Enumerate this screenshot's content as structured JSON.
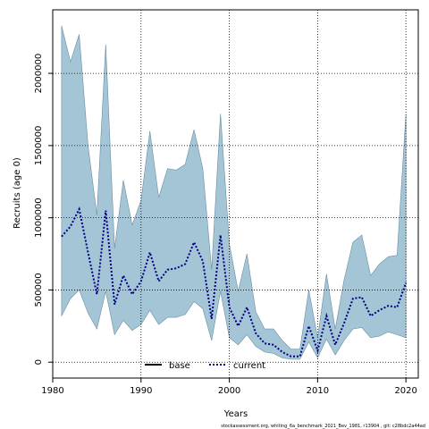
{
  "chart_data": {
    "type": "line",
    "xlabel": "Years",
    "ylabel": "Recruits (age 0)",
    "xlim": [
      1980,
      2021.4
    ],
    "ylim": [
      -110000,
      2440000
    ],
    "x_ticks": [
      1980,
      1990,
      2000,
      2010,
      2020
    ],
    "y_ticks": [
      0,
      500000,
      1000000,
      1500000,
      2000000
    ],
    "grid": true,
    "legend_placement": "bottom-center",
    "x": [
      1981,
      1982,
      1983,
      1984,
      1985,
      1986,
      1987,
      1988,
      1989,
      1990,
      1991,
      1992,
      1993,
      1994,
      1995,
      1996,
      1997,
      1998,
      1999,
      2000,
      2001,
      2002,
      2003,
      2004,
      2005,
      2006,
      2007,
      2008,
      2009,
      2010,
      2011,
      2012,
      2013,
      2014,
      2015,
      2016,
      2017,
      2018,
      2019,
      2020
    ],
    "series": [
      {
        "name": "current",
        "color": "#000080",
        "values": [
          870000,
          940000,
          1060000,
          760000,
          470000,
          1050000,
          400000,
          600000,
          470000,
          560000,
          760000,
          560000,
          640000,
          650000,
          680000,
          830000,
          700000,
          300000,
          880000,
          380000,
          250000,
          380000,
          200000,
          130000,
          120000,
          70000,
          40000,
          40000,
          250000,
          80000,
          320000,
          120000,
          270000,
          440000,
          450000,
          320000,
          360000,
          390000,
          380000,
          550000
        ],
        "lower": [
          320000,
          440000,
          500000,
          340000,
          230000,
          490000,
          190000,
          290000,
          220000,
          260000,
          360000,
          260000,
          310000,
          310000,
          330000,
          420000,
          370000,
          150000,
          490000,
          170000,
          120000,
          190000,
          110000,
          70000,
          60000,
          30000,
          20000,
          20000,
          140000,
          30000,
          160000,
          50000,
          150000,
          230000,
          240000,
          170000,
          180000,
          210000,
          190000,
          170000
        ],
        "upper": [
          2330000,
          2080000,
          2270000,
          1500000,
          1020000,
          2200000,
          790000,
          1260000,
          950000,
          1120000,
          1600000,
          1140000,
          1340000,
          1330000,
          1370000,
          1610000,
          1340000,
          640000,
          1720000,
          820000,
          490000,
          750000,
          350000,
          230000,
          230000,
          150000,
          90000,
          90000,
          500000,
          170000,
          610000,
          230000,
          570000,
          830000,
          880000,
          600000,
          680000,
          730000,
          740000,
          1720000
        ]
      }
    ],
    "ci_fill_color": "#a4c5d6",
    "ci_stroke_color": "#6a8ea3"
  },
  "legend": {
    "base_label": "base",
    "current_label": "current",
    "base_color": "#000000",
    "current_color": "#000080"
  },
  "footer": "stockassessment.org, whiting_6a_benchmark_2021_Bev_1981, r13904 , git: c28bdc2a44ad"
}
